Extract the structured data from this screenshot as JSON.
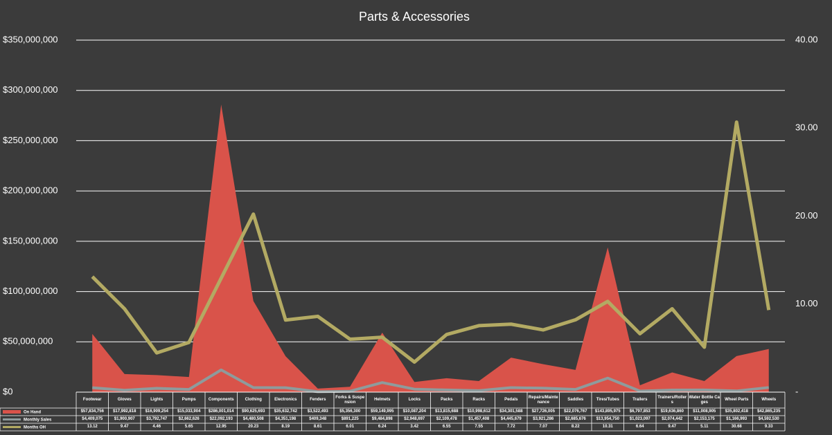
{
  "chart_data": {
    "type": "area-line",
    "title": "Parts & Accessories",
    "categories": [
      "Footwear",
      "Gloves",
      "Lights",
      "Pumps",
      "Components",
      "Clothing",
      "Electronics",
      "Fenders",
      "Forks & Suspension",
      "Helmets",
      "Locks",
      "Packs",
      "Racks",
      "Pedals",
      "Repairs/Maintenance",
      "Saddles",
      "Tires/Tubes",
      "Trailers",
      "Trainers/Rollers",
      "Water Bottle Cages",
      "Wheel Parts",
      "Wheels"
    ],
    "series": [
      {
        "name": "On Hand",
        "type": "area",
        "color": "#d9534a",
        "values": [
          57834756,
          17992818,
          16909254,
          15033904,
          286001014,
          90625693,
          35632742,
          3522493,
          5356300,
          59149995,
          10087204,
          13815688,
          10998612,
          34301588,
          27726005,
          22076767,
          143895975,
          6797853,
          19636860,
          11008905,
          35802418,
          42865235
        ],
        "value_labels": [
          "$57,834,756",
          "$17,992,818",
          "$16,909,254",
          "$15,033,904",
          "$286,001,014",
          "$90,625,693",
          "$35,632,742",
          "$3,522,493",
          "$5,356,300",
          "$59,149,995",
          "$10,087,204",
          "$13,815,688",
          "$10,998,612",
          "$34,301,588",
          "$27,726,005",
          "$22,076,767",
          "$143,895,975",
          "$6,797,853",
          "$19,636,860",
          "$11,008,905",
          "$35,802,418",
          "$42,865,235"
        ]
      },
      {
        "name": "Monthly Sales",
        "type": "line",
        "color": "#8e9b9c",
        "values": [
          4409075,
          1900907,
          3792747,
          2662626,
          22092193,
          4480508,
          4351198,
          409348,
          891225,
          9484898,
          2948697,
          2109478,
          1457408,
          4445679,
          3921286,
          2685676,
          13954750,
          1023097,
          2074442,
          2153175,
          1166993,
          4592530
        ],
        "value_labels": [
          "$4,409,075",
          "$1,900,907",
          "$3,792,747",
          "$2,662,626",
          "$22,092,193",
          "$4,480,508",
          "$4,351,198",
          "$409,348",
          "$891,225",
          "$9,484,898",
          "$2,948,697",
          "$2,109,478",
          "$1,457,408",
          "$4,445,679",
          "$3,921,286",
          "$2,685,676",
          "$13,954,750",
          "$1,023,097",
          "$2,074,442",
          "$2,153,175",
          "$1,166,993",
          "$4,592,530"
        ]
      },
      {
        "name": "Months OH",
        "type": "line",
        "axis": "y2",
        "color": "#b3aa63",
        "values": [
          13.12,
          9.47,
          4.46,
          5.65,
          12.95,
          20.23,
          8.19,
          8.61,
          6.01,
          6.24,
          3.42,
          6.55,
          7.55,
          7.72,
          7.07,
          8.22,
          10.31,
          6.64,
          9.47,
          5.11,
          30.68,
          9.33
        ]
      }
    ],
    "ylim": [
      0,
      350000000
    ],
    "yticks": [
      {
        "value": 0,
        "label": "$0"
      },
      {
        "value": 50000000,
        "label": "$50,000,000"
      },
      {
        "value": 100000000,
        "label": "$100,000,000"
      },
      {
        "value": 150000000,
        "label": "$150,000,000"
      },
      {
        "value": 200000000,
        "label": "$200,000,000"
      },
      {
        "value": 250000000,
        "label": "$250,000,000"
      },
      {
        "value": 300000000,
        "label": "$300,000,000"
      },
      {
        "value": 350000000,
        "label": "$350,000,000"
      }
    ],
    "y2lim": [
      0,
      40
    ],
    "y2ticks": [
      {
        "value": 0,
        "label": "-"
      },
      {
        "value": 10,
        "label": "10.00"
      },
      {
        "value": 20,
        "label": "20.00"
      },
      {
        "value": 30,
        "label": "30.00"
      },
      {
        "value": 40,
        "label": "40.00"
      }
    ],
    "grid": true
  }
}
